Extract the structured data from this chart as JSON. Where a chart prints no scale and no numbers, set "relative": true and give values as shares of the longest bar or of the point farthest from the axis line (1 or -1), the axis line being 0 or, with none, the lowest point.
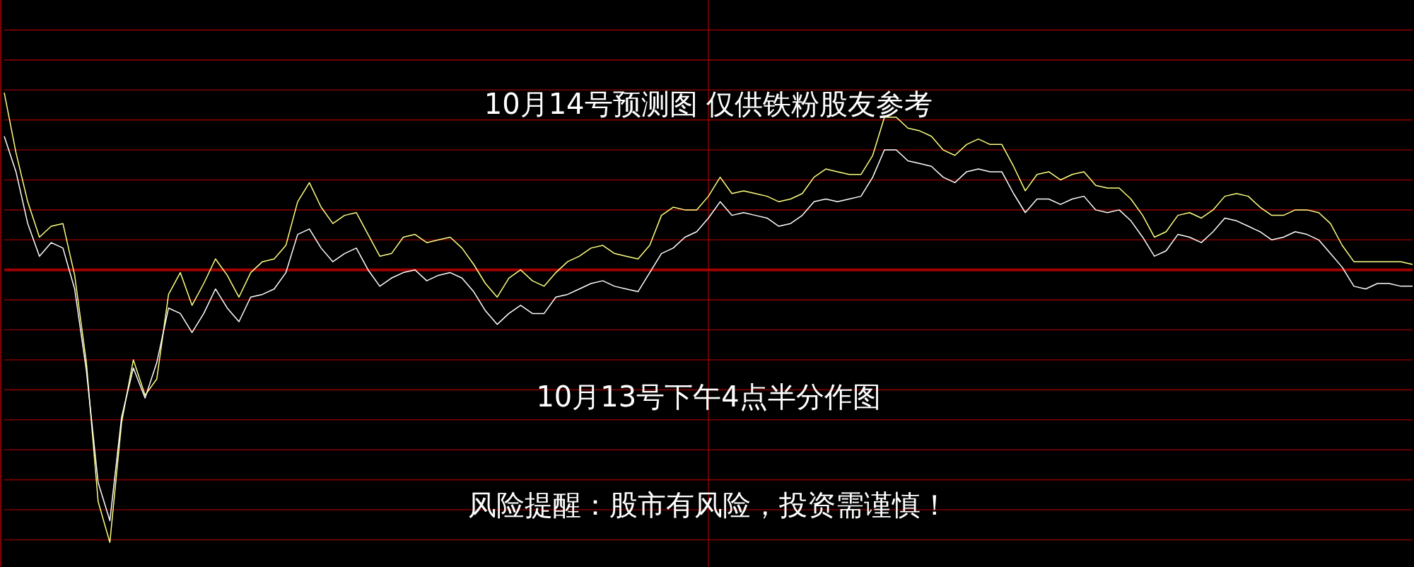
{
  "chart_data": {
    "type": "line",
    "relative": true,
    "title": "10月14号预测图 仅供铁粉股友参考",
    "annotations": [
      "10月13号下午4点半分作图",
      "风险提醒：股市有风险，投资需谨慎！"
    ],
    "categories": [
      null,
      null,
      null,
      null,
      null,
      null,
      null,
      null,
      null,
      null,
      null,
      null,
      null,
      null,
      null,
      null,
      null,
      null,
      null,
      null,
      null,
      null,
      null,
      null,
      null,
      null,
      null,
      null,
      null,
      null,
      null,
      null,
      null,
      null,
      null,
      null,
      null,
      null,
      null,
      null,
      null,
      null,
      null,
      null,
      null,
      null,
      null,
      null,
      null,
      null,
      null,
      null,
      null,
      null,
      null,
      null,
      null,
      null,
      null,
      null,
      null,
      null,
      null,
      null,
      null,
      null,
      null,
      null,
      null,
      null,
      null,
      null,
      null,
      null,
      null,
      null,
      null,
      null,
      null,
      null,
      null,
      null,
      null,
      null,
      null,
      null,
      null,
      null,
      null,
      null,
      null,
      null,
      null,
      null,
      null,
      null,
      null,
      null,
      null,
      null,
      null,
      null,
      null,
      null,
      null,
      null,
      null,
      null,
      null,
      null,
      null,
      null,
      null,
      null,
      null,
      null,
      null,
      null,
      null,
      null,
      null
    ],
    "series": [
      {
        "color": "#ffff80",
        "values": [
          0.65,
          0.43,
          0.25,
          0.12,
          0.16,
          0.17,
          -0.02,
          -0.34,
          -0.85,
          -1,
          -0.56,
          -0.33,
          -0.46,
          -0.4,
          -0.09,
          -0.01,
          -0.13,
          -0.05,
          0.04,
          -0.02,
          -0.1,
          -0.01,
          0.03,
          0.04,
          0.09,
          0.25,
          0.32,
          0.23,
          0.17,
          0.2,
          0.21,
          0.13,
          0.05,
          0.06,
          0.12,
          0.13,
          0.1,
          0.11,
          0.12,
          0.08,
          0.02,
          -0.05,
          -0.1,
          -0.03,
          0,
          -0.04,
          -0.06,
          -0.01,
          0.03,
          0.05,
          0.08,
          0.09,
          0.06,
          0.05,
          0.04,
          0.09,
          0.2,
          0.23,
          0.22,
          0.22,
          0.27,
          0.34,
          0.28,
          0.29,
          0.28,
          0.27,
          0.25,
          0.26,
          0.28,
          0.34,
          0.37,
          0.36,
          0.35,
          0.35,
          0.42,
          0.56,
          0.56,
          0.52,
          0.51,
          0.49,
          0.44,
          0.42,
          0.46,
          0.48,
          0.46,
          0.46,
          0.38,
          0.29,
          0.35,
          0.36,
          0.33,
          0.35,
          0.36,
          0.31,
          0.3,
          0.3,
          0.26,
          0.2,
          0.12,
          0.14,
          0.2,
          0.21,
          0.19,
          0.22,
          0.27,
          0.28,
          0.27,
          0.23,
          0.2,
          0.2,
          0.22,
          0.22,
          0.21,
          0.17,
          0.09,
          0.03,
          0.03,
          0.03,
          0.03,
          0.03,
          0.02
        ]
      },
      {
        "color": "#ffffff",
        "values": [
          0.49,
          0.36,
          0.17,
          0.05,
          0.1,
          0.08,
          -0.07,
          -0.37,
          -0.78,
          -0.92,
          -0.54,
          -0.36,
          -0.47,
          -0.34,
          -0.14,
          -0.16,
          -0.23,
          -0.16,
          -0.07,
          -0.14,
          -0.19,
          -0.1,
          -0.09,
          -0.07,
          -0.01,
          0.13,
          0.15,
          0.08,
          0.03,
          0.06,
          0.08,
          0,
          -0.06,
          -0.03,
          -0.01,
          0,
          -0.04,
          -0.02,
          -0.01,
          -0.03,
          -0.08,
          -0.15,
          -0.2,
          -0.16,
          -0.13,
          -0.16,
          -0.16,
          -0.1,
          -0.09,
          -0.07,
          -0.05,
          -0.04,
          -0.06,
          -0.07,
          -0.08,
          -0.01,
          0.06,
          0.08,
          0.12,
          0.14,
          0.19,
          0.25,
          0.2,
          0.21,
          0.2,
          0.19,
          0.16,
          0.17,
          0.2,
          0.25,
          0.26,
          0.25,
          0.26,
          0.27,
          0.34,
          0.44,
          0.44,
          0.4,
          0.39,
          0.38,
          0.34,
          0.32,
          0.36,
          0.37,
          0.36,
          0.36,
          0.28,
          0.21,
          0.26,
          0.26,
          0.24,
          0.26,
          0.27,
          0.22,
          0.21,
          0.22,
          0.18,
          0.12,
          0.05,
          0.07,
          0.13,
          0.12,
          0.1,
          0.14,
          0.19,
          0.18,
          0.16,
          0.14,
          0.11,
          0.12,
          0.14,
          0.13,
          0.11,
          0.06,
          0.01,
          -0.06,
          -0.07,
          -0.05,
          -0.05,
          -0.06,
          -0.06
        ]
      }
    ],
    "ref_lines": [
      {
        "axis": "y",
        "value": 0,
        "color": "#a00000"
      },
      {
        "axis": "y",
        "value": -0.99,
        "color": "#800000"
      },
      {
        "axis": "y",
        "value": -0.88,
        "color": "#800000"
      },
      {
        "axis": "y",
        "value": -0.77,
        "color": "#800000"
      },
      {
        "axis": "y",
        "value": -0.66,
        "color": "#800000"
      },
      {
        "axis": "y",
        "value": -0.55,
        "color": "#800000"
      },
      {
        "axis": "y",
        "value": -0.44,
        "color": "#800000"
      },
      {
        "axis": "y",
        "value": -0.33,
        "color": "#800000"
      },
      {
        "axis": "y",
        "value": -0.22,
        "color": "#800000"
      },
      {
        "axis": "y",
        "value": -0.11,
        "color": "#800000"
      },
      {
        "axis": "y",
        "value": 0.11,
        "color": "#800000"
      },
      {
        "axis": "y",
        "value": 0.22,
        "color": "#800000"
      },
      {
        "axis": "y",
        "value": 0.33,
        "color": "#800000"
      },
      {
        "axis": "y",
        "value": 0.44,
        "color": "#800000"
      },
      {
        "axis": "y",
        "value": 0.55,
        "color": "#800000"
      },
      {
        "axis": "y",
        "value": 0.66,
        "color": "#800000"
      },
      {
        "axis": "y",
        "value": 0.77,
        "color": "#800000"
      },
      {
        "axis": "y",
        "value": 0.88,
        "color": "#800000"
      }
    ],
    "marker": "none"
  }
}
